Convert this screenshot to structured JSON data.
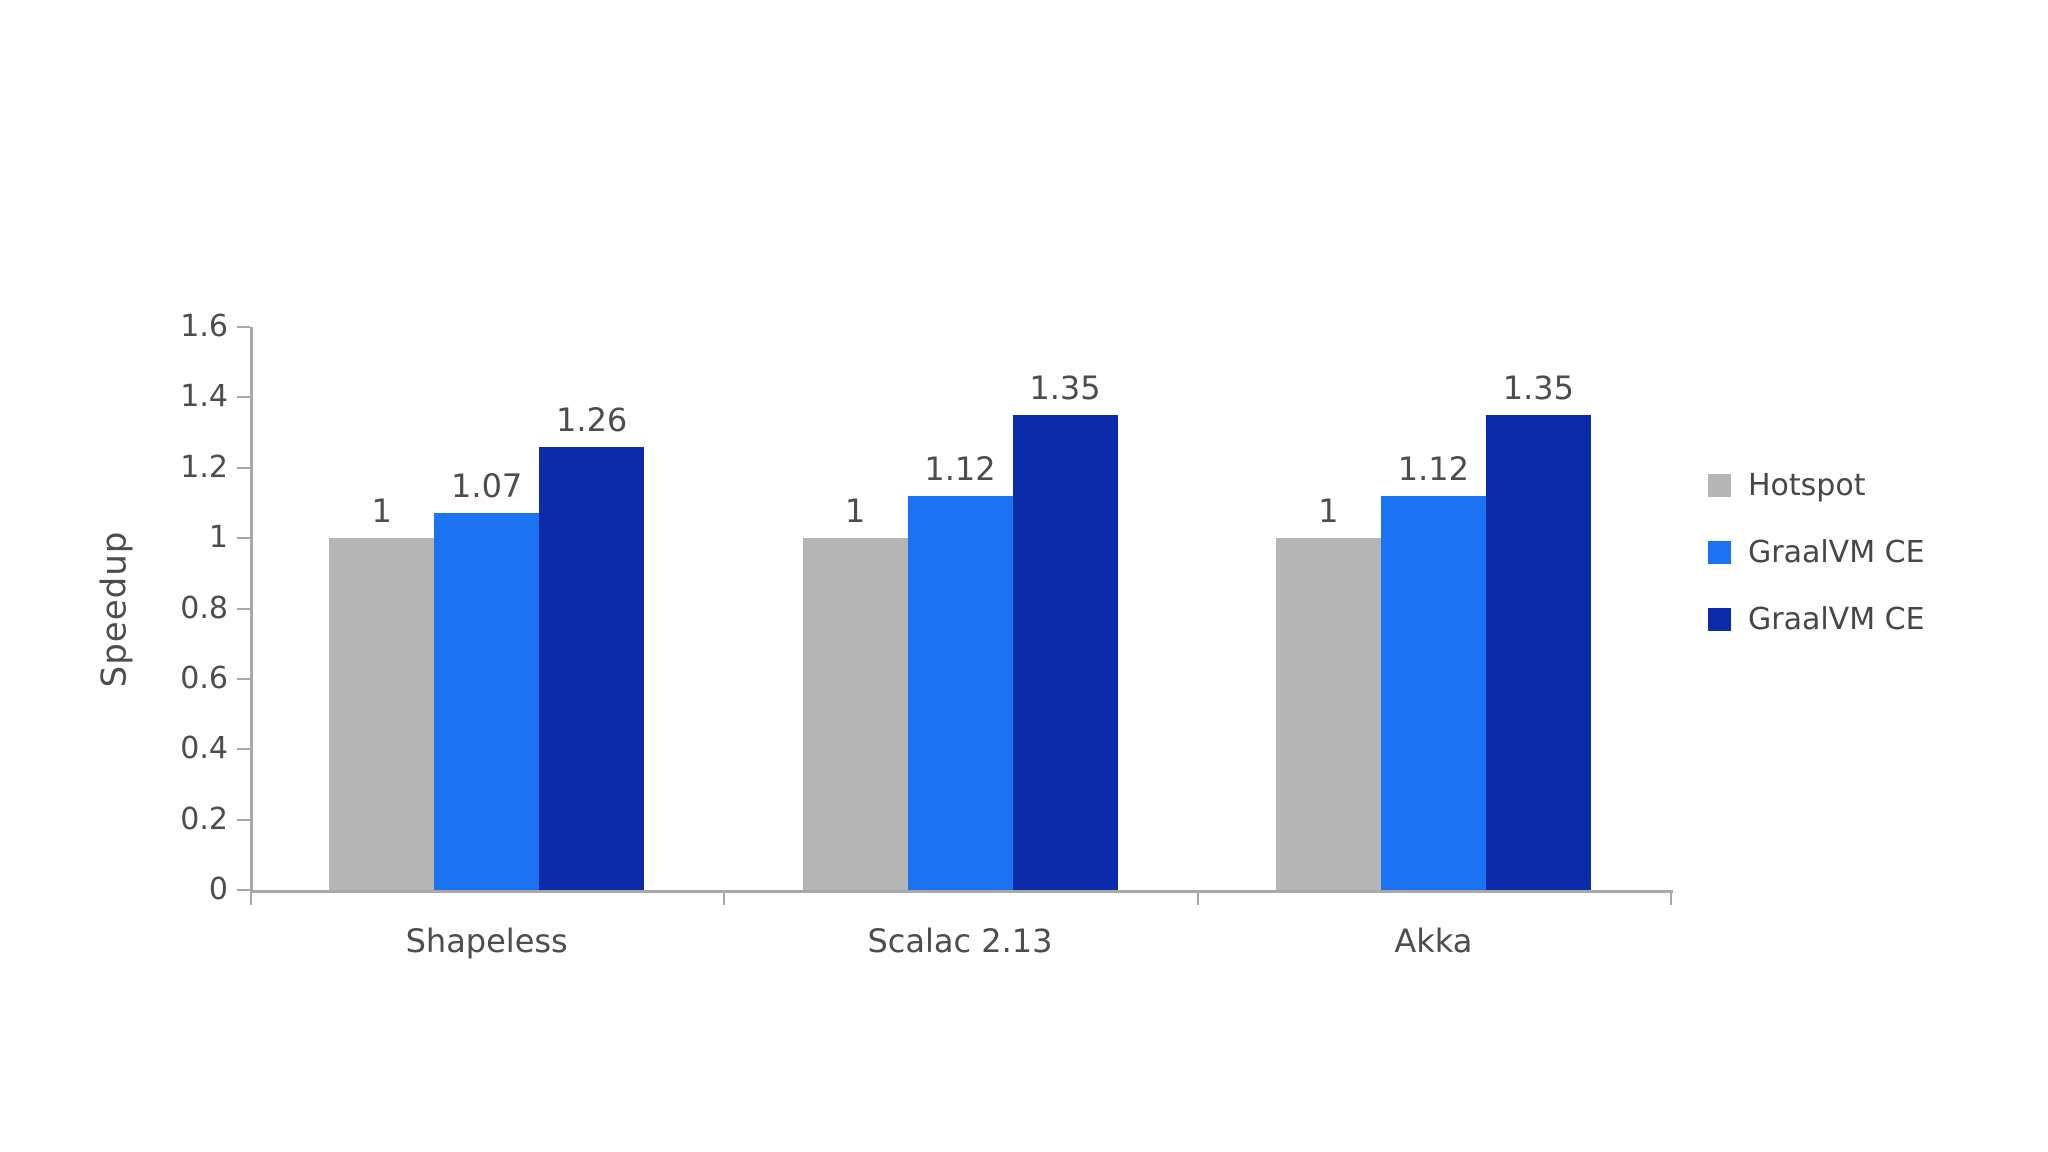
{
  "page": {
    "background": "#ffffff"
  },
  "chart_data": {
    "type": "bar",
    "title": "",
    "xlabel": "",
    "ylabel": "Speedup",
    "categories": [
      "Shapeless",
      "Scalac 2.13",
      "Akka"
    ],
    "series": [
      {
        "name": "Hotspot",
        "color": "#b5b5b5",
        "values": [
          1,
          1,
          1
        ],
        "labels": [
          "1",
          "1",
          "1"
        ]
      },
      {
        "name": "GraalVM CE",
        "color": "#1b73f2",
        "values": [
          1.07,
          1.12,
          1.12
        ],
        "labels": [
          "1.07",
          "1.12",
          "1.12"
        ]
      },
      {
        "name": "GraalVM CE",
        "color": "#0c2baa",
        "values": [
          1.26,
          1.35,
          1.35
        ],
        "labels": [
          "1.26",
          "1.35",
          "1.35"
        ]
      }
    ],
    "ylim": [
      0,
      1.6
    ],
    "yticks": [
      0,
      0.2,
      0.4,
      0.6,
      0.8,
      1,
      1.2,
      1.4,
      1.6
    ],
    "ytick_labels": [
      "0",
      "0.2",
      "0.4",
      "0.6",
      "0.8",
      "1",
      "1.2",
      "1.4",
      "1.6"
    ],
    "grid": false,
    "legend_position": "right",
    "axis_color": "#a8a8a8",
    "text_color": "#4d4d4d"
  }
}
